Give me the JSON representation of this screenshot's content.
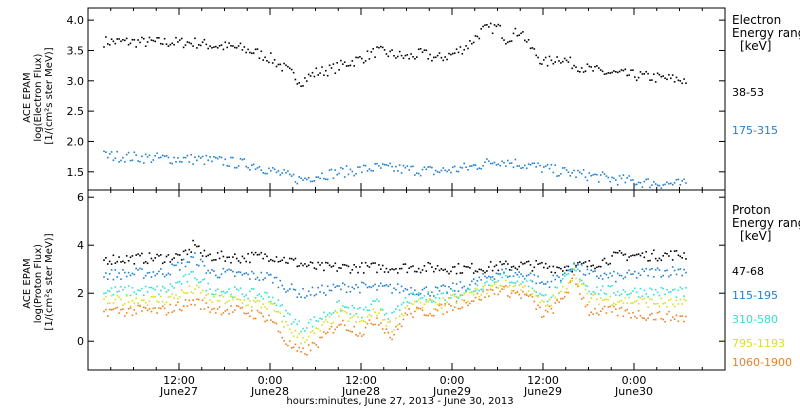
{
  "chart_data": {
    "type": "scatter",
    "xlabel": "hours:minutes, June 27, 2013 - June 30, 2013",
    "x_ticks": [
      {
        "time": "12:00",
        "date": "June27"
      },
      {
        "time": "0:00",
        "date": "June28"
      },
      {
        "time": "12:00",
        "date": "June28"
      },
      {
        "time": "0:00",
        "date": "June29"
      },
      {
        "time": "12:00",
        "date": "June29"
      },
      {
        "time": "0:00",
        "date": "June30"
      }
    ],
    "panels": [
      {
        "name": "electron",
        "ylabel_lines": [
          "ACE EPAM",
          "log(Electron Flux)",
          "[1/(cm²s ster MeV)]"
        ],
        "ylim": [
          1.2,
          4.2
        ],
        "y_ticks": [
          "1.5",
          "2.0",
          "2.5",
          "3.0",
          "3.5",
          "4.0"
        ],
        "legend_title_lines": [
          "Electron",
          "Energy ranges",
          "[keV]"
        ],
        "series": [
          {
            "name": "38-53",
            "color": "#000000",
            "points": [
              [
                2,
                3.66
              ],
              [
                8,
                3.65
              ],
              [
                14,
                3.64
              ],
              [
                16,
                3.6
              ],
              [
                20,
                3.55
              ],
              [
                22,
                3.48
              ],
              [
                24,
                3.38
              ],
              [
                26,
                3.2
              ],
              [
                28,
                3.0
              ],
              [
                30,
                3.15
              ],
              [
                32,
                3.2
              ],
              [
                34,
                3.3
              ],
              [
                36,
                3.38
              ],
              [
                38,
                3.5
              ],
              [
                40,
                3.45
              ],
              [
                42,
                3.4
              ],
              [
                44,
                3.46
              ],
              [
                46,
                3.38
              ],
              [
                48,
                3.45
              ],
              [
                50,
                3.6
              ],
              [
                52,
                3.85
              ],
              [
                54,
                3.9
              ],
              [
                55,
                3.7
              ],
              [
                57,
                3.85
              ],
              [
                58,
                3.6
              ],
              [
                60,
                3.3
              ],
              [
                62,
                3.4
              ],
              [
                64,
                3.28
              ],
              [
                66,
                3.2
              ],
              [
                68,
                3.15
              ],
              [
                72,
                3.1
              ],
              [
                76,
                3.05
              ],
              [
                79,
                3.02
              ]
            ]
          },
          {
            "name": "175-315",
            "color": "#1f7fd0",
            "points": [
              [
                2,
                1.78
              ],
              [
                8,
                1.74
              ],
              [
                14,
                1.72
              ],
              [
                18,
                1.68
              ],
              [
                22,
                1.62
              ],
              [
                26,
                1.45
              ],
              [
                28,
                1.38
              ],
              [
                30,
                1.45
              ],
              [
                34,
                1.52
              ],
              [
                38,
                1.58
              ],
              [
                42,
                1.55
              ],
              [
                46,
                1.52
              ],
              [
                50,
                1.58
              ],
              [
                54,
                1.7
              ],
              [
                58,
                1.62
              ],
              [
                62,
                1.52
              ],
              [
                66,
                1.45
              ],
              [
                70,
                1.38
              ],
              [
                74,
                1.33
              ],
              [
                79,
                1.3
              ]
            ]
          }
        ]
      },
      {
        "name": "proton",
        "ylabel_lines": [
          "ACE EPAM",
          "log(Proton Flux)",
          "[1/(cm²s ster MeV)]"
        ],
        "ylim": [
          -1.2,
          6.3
        ],
        "y_ticks": [
          "0",
          "2",
          "4",
          "6"
        ],
        "legend_title_lines": [
          "Proton",
          "Energy ranges",
          "[keV]"
        ],
        "series": [
          {
            "name": "47-68",
            "color": "#000000",
            "points": [
              [
                2,
                3.45
              ],
              [
                10,
                3.5
              ],
              [
                13,
                3.6
              ],
              [
                14,
                4.2
              ],
              [
                15,
                3.6
              ],
              [
                20,
                3.5
              ],
              [
                24,
                3.6
              ],
              [
                28,
                3.25
              ],
              [
                30,
                3.1
              ],
              [
                36,
                3.1
              ],
              [
                44,
                3.1
              ],
              [
                50,
                3.05
              ],
              [
                54,
                3.15
              ],
              [
                58,
                3.2
              ],
              [
                62,
                3.1
              ],
              [
                66,
                3.2
              ],
              [
                70,
                3.6
              ],
              [
                74,
                3.6
              ],
              [
                79,
                3.65
              ]
            ]
          },
          {
            "name": "115-195",
            "color": "#1f7fd0",
            "points": [
              [
                2,
                2.8
              ],
              [
                10,
                2.9
              ],
              [
                14,
                3.5
              ],
              [
                16,
                2.9
              ],
              [
                20,
                2.8
              ],
              [
                24,
                2.7
              ],
              [
                26,
                2.3
              ],
              [
                28,
                2.0
              ],
              [
                30,
                2.1
              ],
              [
                34,
                2.3
              ],
              [
                38,
                2.25
              ],
              [
                42,
                2.2
              ],
              [
                46,
                2.1
              ],
              [
                50,
                2.35
              ],
              [
                54,
                2.9
              ],
              [
                58,
                2.8
              ],
              [
                60,
                2.4
              ],
              [
                62,
                2.7
              ],
              [
                64,
                3.2
              ],
              [
                66,
                2.8
              ],
              [
                70,
                2.7
              ],
              [
                74,
                2.9
              ],
              [
                79,
                3.0
              ]
            ]
          },
          {
            "name": "310-580",
            "color": "#30e0d0",
            "points": [
              [
                2,
                2.1
              ],
              [
                10,
                2.15
              ],
              [
                14,
                2.8
              ],
              [
                16,
                2.2
              ],
              [
                20,
                2.05
              ],
              [
                24,
                1.9
              ],
              [
                26,
                1.2
              ],
              [
                28,
                0.6
              ],
              [
                30,
                0.9
              ],
              [
                33,
                1.5
              ],
              [
                36,
                1.2
              ],
              [
                38,
                1.6
              ],
              [
                40,
                1.0
              ],
              [
                42,
                1.8
              ],
              [
                46,
                1.9
              ],
              [
                50,
                2.1
              ],
              [
                54,
                2.7
              ],
              [
                58,
                2.5
              ],
              [
                60,
                1.8
              ],
              [
                62,
                2.2
              ],
              [
                64,
                3.1
              ],
              [
                66,
                2.2
              ],
              [
                70,
                2.1
              ],
              [
                74,
                2.1
              ],
              [
                79,
                2.05
              ]
            ]
          },
          {
            "name": "795-1193",
            "color": "#d8e020",
            "points": [
              [
                2,
                1.7
              ],
              [
                10,
                1.75
              ],
              [
                14,
                2.2
              ],
              [
                16,
                1.8
              ],
              [
                20,
                1.7
              ],
              [
                24,
                1.5
              ],
              [
                26,
                0.7
              ],
              [
                28,
                0.1
              ],
              [
                30,
                0.4
              ],
              [
                33,
                1.2
              ],
              [
                36,
                0.8
              ],
              [
                38,
                1.3
              ],
              [
                40,
                0.6
              ],
              [
                42,
                1.5
              ],
              [
                46,
                1.6
              ],
              [
                50,
                1.9
              ],
              [
                54,
                2.4
              ],
              [
                58,
                2.2
              ],
              [
                60,
                1.5
              ],
              [
                62,
                1.9
              ],
              [
                64,
                2.9
              ],
              [
                66,
                1.8
              ],
              [
                70,
                1.75
              ],
              [
                74,
                1.65
              ],
              [
                79,
                1.55
              ]
            ]
          },
          {
            "name": "1060-1900",
            "color": "#f08020",
            "points": [
              [
                2,
                1.3
              ],
              [
                10,
                1.3
              ],
              [
                14,
                1.7
              ],
              [
                16,
                1.4
              ],
              [
                20,
                1.3
              ],
              [
                24,
                1.0
              ],
              [
                26,
                0.0
              ],
              [
                28,
                -0.5
              ],
              [
                30,
                -0.1
              ],
              [
                33,
                0.8
              ],
              [
                36,
                0.4
              ],
              [
                38,
                1.0
              ],
              [
                40,
                0.2
              ],
              [
                42,
                1.2
              ],
              [
                46,
                1.3
              ],
              [
                50,
                1.7
              ],
              [
                54,
                2.2
              ],
              [
                58,
                1.9
              ],
              [
                60,
                1.1
              ],
              [
                62,
                1.6
              ],
              [
                64,
                2.6
              ],
              [
                66,
                1.3
              ],
              [
                70,
                1.25
              ],
              [
                74,
                1.1
              ],
              [
                79,
                1.0
              ]
            ]
          }
        ]
      }
    ]
  }
}
